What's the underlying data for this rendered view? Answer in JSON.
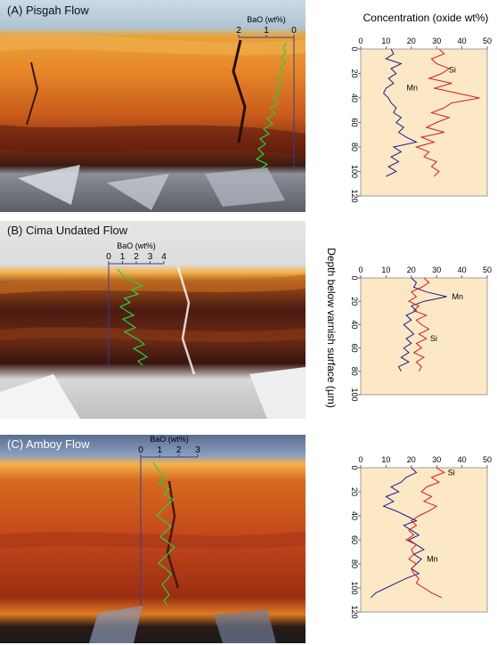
{
  "colors": {
    "plot_bg": "#fde8c6",
    "mn": "#1a1a8c",
    "si": "#cc1f1f",
    "bao": "#2ecc40",
    "bao_axis": "#3a3a9a"
  },
  "shared": {
    "top_axis_title": "Concentration (oxide wt%)",
    "y_axis_title": "Depth below varnish surface (µm)"
  },
  "chart_data": [
    {
      "type": "line",
      "panel_title": "(A) Pisgah Flow",
      "bao_label": "BaO (wt%)",
      "bao_ticks": [
        "2",
        "1",
        "0"
      ],
      "xlim": [
        0,
        50
      ],
      "x_ticks": [
        "0",
        "10",
        "20",
        "30",
        "40",
        "50"
      ],
      "ylim": [
        0,
        120
      ],
      "y_ticks": [
        "0",
        "20",
        "40",
        "60",
        "80",
        "100",
        "120"
      ],
      "series": [
        {
          "name": "Mn",
          "depth": [
            0,
            4,
            8,
            12,
            16,
            20,
            24,
            28,
            32,
            36,
            40,
            44,
            48,
            52,
            56,
            60,
            64,
            68,
            72,
            76,
            80,
            84,
            88,
            92,
            96,
            100,
            104
          ],
          "values": [
            12,
            13,
            10,
            16,
            12,
            14,
            11,
            13,
            10,
            9,
            11,
            12,
            14,
            13,
            16,
            14,
            17,
            15,
            18,
            22,
            13,
            16,
            12,
            15,
            11,
            14,
            10
          ]
        },
        {
          "name": "Si",
          "depth": [
            0,
            4,
            8,
            12,
            16,
            20,
            24,
            28,
            32,
            36,
            40,
            44,
            48,
            52,
            56,
            60,
            64,
            68,
            72,
            76,
            80,
            84,
            88,
            92,
            96,
            100,
            104
          ],
          "values": [
            31,
            33,
            28,
            30,
            35,
            32,
            27,
            36,
            29,
            38,
            47,
            36,
            33,
            28,
            35,
            30,
            26,
            33,
            24,
            29,
            22,
            27,
            25,
            30,
            28,
            31,
            29
          ]
        }
      ]
    },
    {
      "type": "line",
      "panel_title": "(B) Cima Undated Flow",
      "bao_label": "BaO (wt%)",
      "bao_ticks": [
        "0",
        "1",
        "2",
        "3",
        "4"
      ],
      "xlim": [
        0,
        50
      ],
      "x_ticks": [
        "0",
        "10",
        "20",
        "30",
        "40",
        "50"
      ],
      "ylim": [
        0,
        100
      ],
      "y_ticks": [
        "0",
        "20",
        "40",
        "60",
        "80",
        "100"
      ],
      "series": [
        {
          "name": "Mn",
          "depth": [
            0,
            4,
            8,
            12,
            16,
            20,
            24,
            28,
            32,
            36,
            40,
            44,
            48,
            52,
            56,
            60,
            64,
            68,
            72,
            76,
            80
          ],
          "values": [
            20,
            22,
            21,
            26,
            34,
            25,
            20,
            22,
            18,
            20,
            17,
            19,
            21,
            18,
            20,
            17,
            19,
            16,
            19,
            15,
            16
          ]
        },
        {
          "name": "Si",
          "depth": [
            0,
            4,
            8,
            12,
            16,
            20,
            24,
            28,
            32,
            36,
            40,
            44,
            48,
            52,
            56,
            60,
            64,
            68,
            72,
            76,
            80
          ],
          "values": [
            25,
            27,
            24,
            20,
            22,
            19,
            23,
            21,
            26,
            22,
            24,
            27,
            23,
            26,
            22,
            24,
            21,
            25,
            22,
            24,
            23
          ]
        }
      ]
    },
    {
      "type": "line",
      "panel_title": "(C) Amboy Flow",
      "bao_label": "BaO (wt%)",
      "bao_ticks": [
        "0",
        "1",
        "2",
        "3"
      ],
      "xlim": [
        0,
        50
      ],
      "x_ticks": [
        "0",
        "10",
        "20",
        "30",
        "40",
        "50"
      ],
      "ylim": [
        0,
        120
      ],
      "y_ticks": [
        "0",
        "20",
        "40",
        "60",
        "80",
        "100",
        "120"
      ],
      "series": [
        {
          "name": "Mn",
          "depth": [
            0,
            4,
            8,
            12,
            16,
            20,
            24,
            28,
            32,
            36,
            40,
            44,
            48,
            52,
            56,
            60,
            64,
            68,
            72,
            76,
            80,
            84,
            88,
            92,
            96,
            100,
            104,
            108
          ],
          "values": [
            20,
            22,
            18,
            16,
            12,
            15,
            10,
            13,
            9,
            14,
            18,
            22,
            17,
            20,
            23,
            19,
            22,
            25,
            21,
            24,
            22,
            20,
            23,
            18,
            14,
            10,
            6,
            4
          ]
        },
        {
          "name": "Si",
          "depth": [
            0,
            4,
            8,
            12,
            16,
            20,
            24,
            28,
            32,
            36,
            40,
            44,
            48,
            52,
            56,
            60,
            64,
            68,
            72,
            76,
            80,
            84,
            88,
            92,
            96,
            100,
            104,
            108
          ],
          "values": [
            30,
            33,
            28,
            31,
            26,
            24,
            28,
            25,
            30,
            27,
            23,
            20,
            22,
            19,
            21,
            18,
            22,
            20,
            21,
            19,
            22,
            20,
            21,
            23,
            22,
            25,
            28,
            32
          ]
        }
      ]
    }
  ]
}
